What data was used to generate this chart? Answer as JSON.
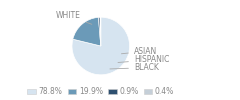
{
  "labels": [
    "WHITE",
    "ASIAN",
    "HISPANIC",
    "BLACK"
  ],
  "values": [
    78.8,
    19.9,
    0.9,
    0.4
  ],
  "colors": [
    "#d6e4f0",
    "#6b9ab8",
    "#2e5070",
    "#c5cfd8"
  ],
  "legend_labels": [
    "78.8%",
    "19.9%",
    "0.9%",
    "0.4%"
  ],
  "legend_colors": [
    "#d6e4f0",
    "#6b9ab8",
    "#2e5070",
    "#c5cfd8"
  ],
  "figsize": [
    2.4,
    1.0
  ],
  "dpi": 100,
  "label_fontsize": 5.5,
  "label_color": "#888888",
  "line_color": "#aaaaaa",
  "bg_color": "#ffffff"
}
